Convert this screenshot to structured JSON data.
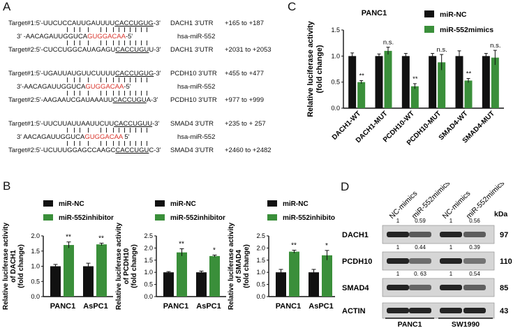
{
  "panels": {
    "a": "A",
    "b": "B",
    "c": "C",
    "d": "D"
  },
  "panel_a": {
    "groups": [
      {
        "rows": [
          {
            "label": "Target#1:",
            "pre": "5'-UUCUCCAUUGAUUUU",
            "hl": "CACCUGUG",
            "post": "-3'",
            "gene": "DACH1 3'UTR",
            "pos": "+165 to +187"
          },
          {
            "label": "",
            "pre": "3' -AACAGAUUGGUCA",
            "hl": "GUGGACAA",
            "post": "-5'",
            "gene": "hsa-miR-552",
            "pos": ""
          },
          {
            "label": "Target#2:",
            "pre": "5'-CUCCUGGCAUAGAGU",
            "hl": "CACCUGU",
            "post": "U-3'",
            "gene": "DACH1 3'UTR",
            "pos": "+2031 to +2053"
          }
        ]
      },
      {
        "rows": [
          {
            "label": "Target#1:",
            "pre": "5'-UGAUUAUGUUCUUUU",
            "hl": "CACCUGUG",
            "post": "-3'",
            "gene": "PCDH10 3'UTR",
            "pos": "+455 to +477"
          },
          {
            "label": "",
            "pre": "3'-AACAGAUUGGUCA",
            "hl": "GUGGACAA",
            "post": "-5'",
            "gene": "hsa-miR-552",
            "pos": ""
          },
          {
            "label": "Target#2:",
            "pre": "5'-AAGAAUCGAUAAAUU",
            "hl": "CACCUGU",
            "post": "A-3'",
            "gene": "PCDH10 3'UTR",
            "pos": "+977 to +999"
          }
        ]
      },
      {
        "rows": [
          {
            "label": "Target#1:",
            "pre": "5'-UUCUUAUUAAUUCUU",
            "hl": "CACCUGUU",
            "post": "-3'",
            "gene": "SMAD4 3'UTR",
            "pos": "+235 to + 257"
          },
          {
            "label": "",
            "pre": "3' AACAGAUUGGUCA",
            "hl": "GUGGACAA",
            "post": " 5'",
            "gene": "hsa-miR-552",
            "pos": ""
          },
          {
            "label": "Target#2:",
            "pre": "5'-UCUUUGGAGCCAAGC",
            "hl": "CACCUGU",
            "post": "C-3'",
            "gene": "SMAD4 3'UTR",
            "pos": "+2460 to +2482"
          }
        ]
      }
    ]
  },
  "panel_b": {
    "legend": [
      "miR-NC",
      "miR-552inhibitor"
    ],
    "colors": {
      "nc": "#111111",
      "treat": "#3a8f3a"
    },
    "chart_data": [
      {
        "type": "bar",
        "ylabel": "Relative luciferase activity of DACH1 (fold change)",
        "ylim": [
          0,
          2.0
        ],
        "yticks": [
          "0.0",
          "0.5",
          "1.0",
          "1.5",
          "2.0"
        ],
        "categories": [
          "PANC1",
          "AsPC1"
        ],
        "series": [
          {
            "name": "miR-NC",
            "values": [
              1.0,
              1.0
            ],
            "err": [
              0.06,
              0.1
            ]
          },
          {
            "name": "miR-552inhibitor",
            "values": [
              1.7,
              1.72
            ],
            "err": [
              0.1,
              0.04
            ]
          }
        ],
        "sig": [
          "**",
          "**"
        ]
      },
      {
        "type": "bar",
        "ylabel": "Relative luciferase activity of PCDH10 (fold change)",
        "ylim": [
          0,
          2.5
        ],
        "yticks": [
          "0.0",
          "0.5",
          "1.0",
          "1.5",
          "2.0",
          "2.5"
        ],
        "categories": [
          "PANC1",
          "AsPC1"
        ],
        "series": [
          {
            "name": "miR-NC",
            "values": [
              1.0,
              1.0
            ],
            "err": [
              0.03,
              0.05
            ]
          },
          {
            "name": "miR-552inhibitor",
            "values": [
              1.82,
              1.67
            ],
            "err": [
              0.15,
              0.04
            ]
          }
        ],
        "sig": [
          "**",
          "*"
        ]
      },
      {
        "type": "bar",
        "ylabel": "Relative luciferase activity of SMAD4 (fold change)",
        "ylim": [
          0,
          2.5
        ],
        "yticks": [
          "0.0",
          "0.5",
          "1.0",
          "1.5",
          "2.0",
          "2.5"
        ],
        "categories": [
          "PANC1",
          "AsPC1"
        ],
        "series": [
          {
            "name": "miR-NC",
            "values": [
              1.0,
              1.0
            ],
            "err": [
              0.12,
              0.12
            ]
          },
          {
            "name": "miR-552inhibitor",
            "values": [
              1.85,
              1.7
            ],
            "err": [
              0.06,
              0.2
            ]
          }
        ],
        "sig": [
          "**",
          "*"
        ]
      }
    ]
  },
  "panel_c": {
    "chart_data": {
      "type": "bar",
      "title": "PANC1",
      "ylabel": "Relative luciferase activity (fold change)",
      "ylim": [
        0,
        1.5
      ],
      "yticks": [
        "0.0",
        "0.5",
        "1.0",
        "1.5"
      ],
      "categories": [
        "DACH1-WT",
        "DACH1-MUT",
        "PCDH10-WT",
        "PCDH10-MUT",
        "SMAD4-WT",
        "SMAD4-MUT"
      ],
      "series": [
        {
          "name": "miR-NC",
          "values": [
            1.0,
            1.0,
            1.0,
            1.0,
            1.0,
            1.0
          ],
          "err": [
            0.06,
            0.04,
            0.05,
            0.05,
            0.1,
            0.05
          ]
        },
        {
          "name": "miR-552mimics",
          "values": [
            0.5,
            1.1,
            0.42,
            0.88,
            0.53,
            0.97
          ],
          "err": [
            0.03,
            0.07,
            0.05,
            0.15,
            0.04,
            0.14
          ]
        }
      ],
      "sig": [
        "**",
        "n.s.",
        "**",
        "n.s.",
        "**",
        "n.s."
      ],
      "legend_position": "top-right"
    }
  },
  "panel_d": {
    "lanes": [
      "NC-mimics",
      "miR-552mimics",
      "NC-mimics",
      "miR-552mimics"
    ],
    "kda_label": "kDa",
    "proteins": [
      {
        "name": "DACH1",
        "kda": "97",
        "quant": [
          "1",
          "0.59",
          "1",
          "0.56"
        ]
      },
      {
        "name": "PCDH10",
        "kda": "110",
        "quant": [
          "1",
          "0.44",
          "1",
          "0.39"
        ]
      },
      {
        "name": "SMAD4",
        "kda": "85",
        "quant": [
          "1",
          "0. 63",
          "1",
          "0.54"
        ]
      },
      {
        "name": "ACTIN",
        "kda": "43",
        "quant": []
      }
    ],
    "cell_lines": [
      "PANC1",
      "SW1990"
    ]
  }
}
